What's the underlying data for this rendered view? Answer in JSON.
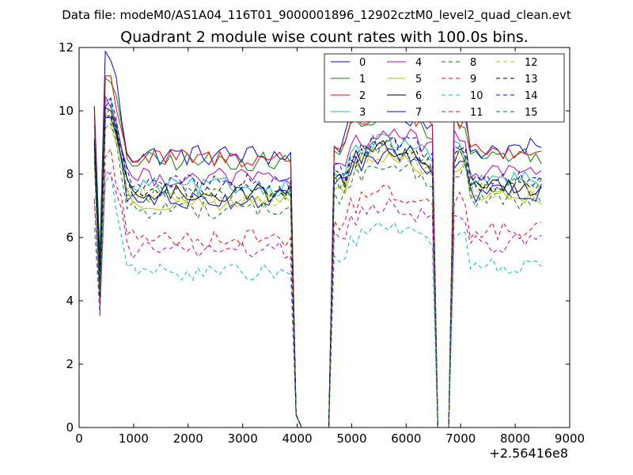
{
  "figure": {
    "suptitle": "Data file: modeM0/AS1A04_116T01_9000001896_12902cztM0_level2_quad_clean.evt"
  },
  "chart_data": {
    "type": "line",
    "title": "Quadrant 2 module wise count rates with 100.0s bins.",
    "xlabel": "",
    "ylabel": "",
    "x_offset_label": "+2.56416e8",
    "xlim": [
      0,
      9000
    ],
    "ylim": [
      0,
      12
    ],
    "xticks": [
      0,
      1000,
      2000,
      3000,
      4000,
      5000,
      6000,
      7000,
      8000,
      9000
    ],
    "yticks": [
      0,
      2,
      4,
      6,
      8,
      10,
      12
    ],
    "grid": false,
    "legend_position": "top-right",
    "legend_columns": 4,
    "x_segments": [
      {
        "start": 280,
        "end": 3880,
        "step": 100
      },
      {
        "start": 3980,
        "end": 4580,
        "step": 100
      },
      {
        "start": 4680,
        "end": 6580,
        "step": 100
      },
      {
        "start": 6580,
        "end": 6780,
        "step": 100
      },
      {
        "start": 6880,
        "end": 8480,
        "step": 100
      }
    ],
    "series": [
      {
        "name": "0",
        "color": "#0000ff",
        "dashed": false,
        "level": 8.6,
        "dip": 5.5,
        "peak": 11.7,
        "wiggle": 0.35
      },
      {
        "name": "1",
        "color": "#008000",
        "dashed": false,
        "level": 8.4,
        "dip": 5.2,
        "peak": 10.9,
        "wiggle": 0.3
      },
      {
        "name": "2",
        "color": "#ff0000",
        "dashed": false,
        "level": 8.5,
        "dip": 4.2,
        "peak": 11.0,
        "wiggle": 0.3
      },
      {
        "name": "3",
        "color": "#00bfbf",
        "dashed": false,
        "level": 7.6,
        "dip": 4.5,
        "peak": 10.2,
        "wiggle": 0.3
      },
      {
        "name": "4",
        "color": "#bf00bf",
        "dashed": false,
        "level": 7.9,
        "dip": 4.4,
        "peak": 10.4,
        "wiggle": 0.3
      },
      {
        "name": "5",
        "color": "#bfbf00",
        "dashed": false,
        "level": 7.1,
        "dip": 4.6,
        "peak": 9.9,
        "wiggle": 0.25
      },
      {
        "name": "6",
        "color": "#000000",
        "dashed": false,
        "level": 7.4,
        "dip": 4.8,
        "peak": 10.1,
        "wiggle": 0.3
      },
      {
        "name": "7",
        "color": "#0000ff",
        "dashed": false,
        "level": 7.2,
        "dip": 4.3,
        "peak": 9.8,
        "wiggle": 0.3
      },
      {
        "name": "8",
        "color": "#008000",
        "dashed": true,
        "level": 6.9,
        "dip": 4.0,
        "peak": 9.5,
        "wiggle": 0.3
      },
      {
        "name": "9",
        "color": "#ff0000",
        "dashed": true,
        "level": 6.0,
        "dip": 3.8,
        "peak": 8.6,
        "wiggle": 0.3
      },
      {
        "name": "10",
        "color": "#00bfbf",
        "dashed": true,
        "level": 4.9,
        "dip": 3.6,
        "peak": 7.8,
        "wiggle": 0.25
      },
      {
        "name": "11",
        "color": "#bf00bf",
        "dashed": true,
        "level": 5.6,
        "dip": 3.7,
        "peak": 8.2,
        "wiggle": 0.3
      },
      {
        "name": "12",
        "color": "#bfbf00",
        "dashed": true,
        "level": 7.3,
        "dip": 4.1,
        "peak": 9.6,
        "wiggle": 0.3
      },
      {
        "name": "13",
        "color": "#000000",
        "dashed": true,
        "level": 7.5,
        "dip": 4.2,
        "peak": 9.9,
        "wiggle": 0.3
      },
      {
        "name": "14",
        "color": "#0000ff",
        "dashed": true,
        "level": 7.7,
        "dip": 4.4,
        "peak": 10.3,
        "wiggle": 0.3
      },
      {
        "name": "15",
        "color": "#008000",
        "dashed": true,
        "level": 7.4,
        "dip": 4.3,
        "peak": 10.0,
        "wiggle": 0.3
      }
    ]
  }
}
